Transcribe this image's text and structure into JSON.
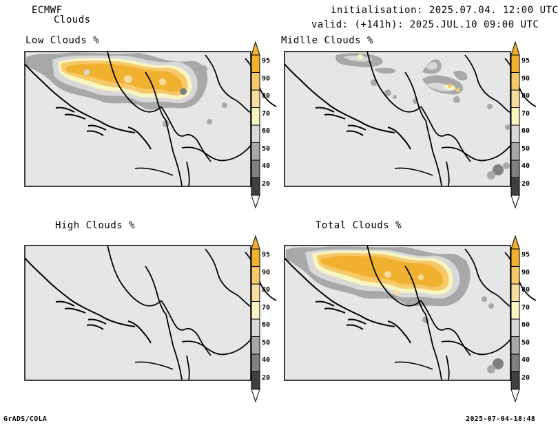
{
  "header": {
    "model": "ECMWF",
    "variable": "Clouds",
    "init": "initialisation: 2025.07.04. 12:00 UTC",
    "valid": "valid: (+141h): 2025.JUL.10 09:00 UTC"
  },
  "panels": [
    {
      "title": "Low Clouds %"
    },
    {
      "title": "Midlle Clouds %"
    },
    {
      "title": "High Clouds %"
    },
    {
      "title": "Total Clouds %"
    }
  ],
  "colorbar": {
    "levels": [
      "95",
      "90",
      "80",
      "70",
      "60",
      "50",
      "40",
      "20"
    ],
    "colors": [
      "#f0b030",
      "#f5c96a",
      "#f8dca0",
      "#f8f5c0",
      "#d8d8d8",
      "#a8a8a8",
      "#808080",
      "#404040"
    ]
  },
  "footer": {
    "left": "GrADS/COLA",
    "right": "2025-07-04-18:48"
  }
}
